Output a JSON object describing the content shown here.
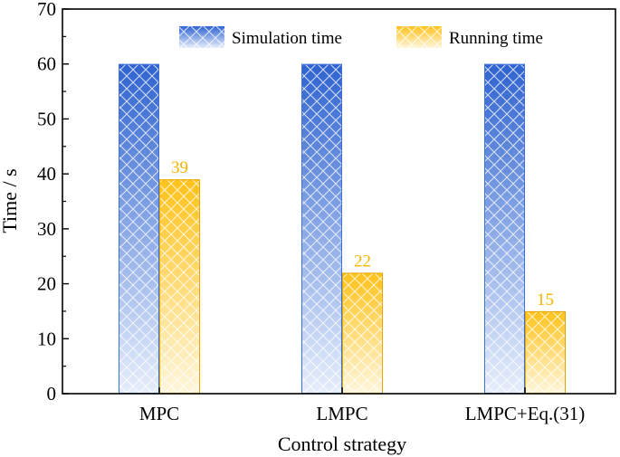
{
  "chart_data": {
    "type": "bar",
    "title": "",
    "xlabel": "Control strategy",
    "ylabel": "Time / s",
    "categories": [
      "MPC",
      "LMPC",
      "LMPC+Eq.(31)"
    ],
    "series": [
      {
        "name": "Simulation time",
        "values": [
          60,
          60,
          60
        ],
        "color_top": "#2f63d0",
        "color_bottom": "#e6eefb",
        "edge": "#3e70d6",
        "show_labels": false
      },
      {
        "name": "Running time",
        "values": [
          39,
          22,
          15
        ],
        "color_top": "#ffc21a",
        "color_bottom": "#fff6dc",
        "edge": "#e8a500",
        "show_labels": true
      }
    ],
    "ylim": [
      0,
      70
    ],
    "yticks": [
      0,
      10,
      20,
      30,
      40,
      50,
      60,
      70
    ],
    "legend_position": "top-right",
    "label_color": "#f5b400",
    "grid": false
  }
}
